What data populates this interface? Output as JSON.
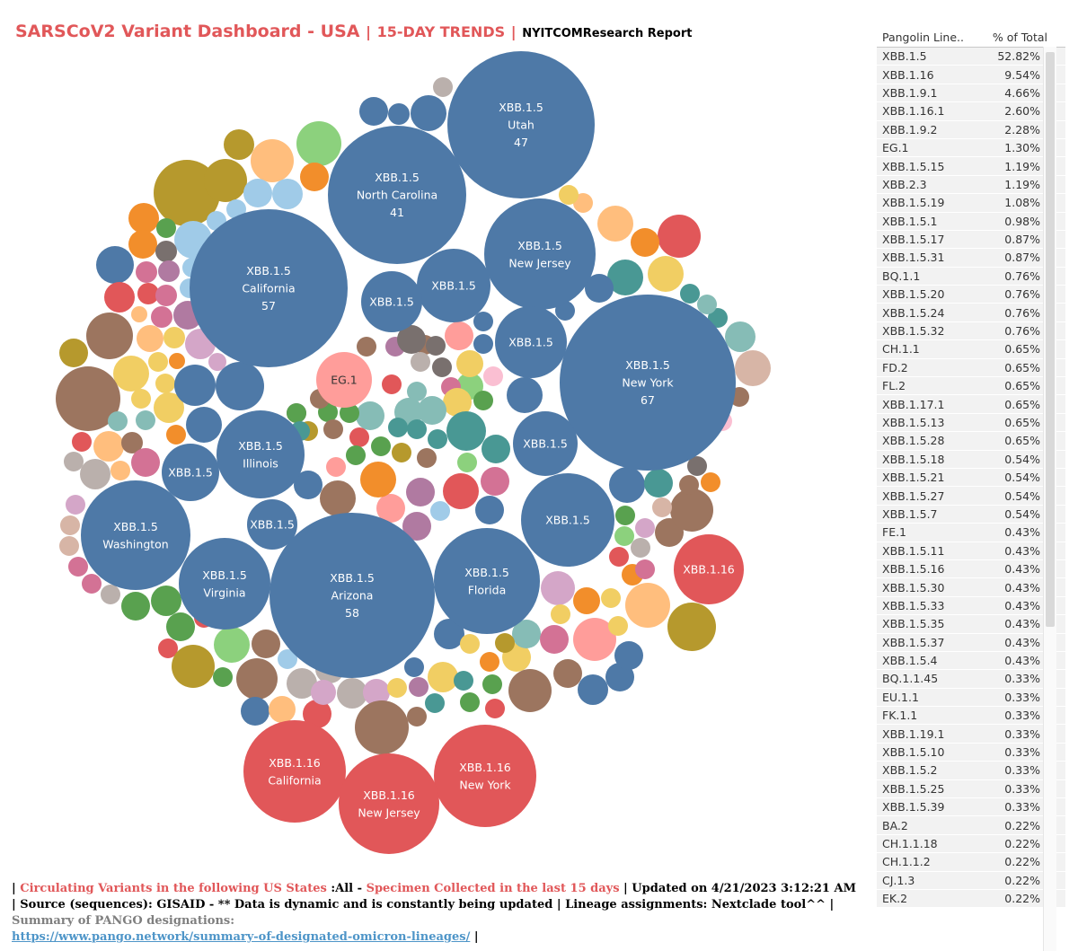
{
  "header": {
    "title": "SARSCoV2 Variant Dashboard - USA",
    "sep": "|",
    "subtitle": "15-DAY TRENDS",
    "report": "NYITCOMResearch Report"
  },
  "colors": {
    "XBB.1.5": "#4e79a7",
    "XBB.1.16": "#e15759",
    "EG.1": "#ff9d9a",
    "other": [
      "#9c755f",
      "#f28e2b",
      "#ffbe7d",
      "#59a14f",
      "#8cd17d",
      "#b6992d",
      "#f1ce63",
      "#499894",
      "#86bcb6",
      "#e15759",
      "#ff9d9a",
      "#d37295",
      "#fabfd2",
      "#b07aa1",
      "#d4a6c8",
      "#bab0ac",
      "#a0cbe8",
      "#79706e",
      "#d7b5a6",
      "#4e79a7"
    ]
  },
  "chart_data": {
    "type": "bubble",
    "title": "SARSCoV2 Variant Dashboard - USA | 15-DAY TRENDS",
    "labeled_bubbles": [
      {
        "lineage": "XBB.1.5",
        "state": "New York",
        "count": 67
      },
      {
        "lineage": "XBB.1.5",
        "state": "Arizona",
        "count": 58
      },
      {
        "lineage": "XBB.1.5",
        "state": "California",
        "count": 57
      },
      {
        "lineage": "XBB.1.5",
        "state": "Utah",
        "count": 47
      },
      {
        "lineage": "XBB.1.5",
        "state": "North Carolina",
        "count": 41
      },
      {
        "lineage": "XBB.1.5",
        "state": "Washington",
        "count": null
      },
      {
        "lineage": "XBB.1.5",
        "state": "New Jersey",
        "count": null
      },
      {
        "lineage": "XBB.1.5",
        "state": "Florida",
        "count": null
      },
      {
        "lineage": "XBB.1.5",
        "state": "Illinois",
        "count": null
      },
      {
        "lineage": "XBB.1.5",
        "state": "Virginia",
        "count": null
      },
      {
        "lineage": "XBB.1.16",
        "state": "California",
        "count": null
      },
      {
        "lineage": "XBB.1.16",
        "state": "New York",
        "count": null
      },
      {
        "lineage": "XBB.1.16",
        "state": "New Jersey",
        "count": null
      },
      {
        "lineage": "XBB.1.5",
        "state": "",
        "count": null
      },
      {
        "lineage": "XBB.1.5",
        "state": "",
        "count": null
      },
      {
        "lineage": "XBB.1.5",
        "state": "",
        "count": null
      },
      {
        "lineage": "XBB.1.5",
        "state": "",
        "count": null
      },
      {
        "lineage": "XBB.1.5",
        "state": "",
        "count": null
      },
      {
        "lineage": "XBB.1.5",
        "state": "",
        "count": null
      },
      {
        "lineage": "XBB.1.5",
        "state": "",
        "count": null
      },
      {
        "lineage": "XBB.1.16",
        "state": "",
        "count": null
      },
      {
        "lineage": "EG.1",
        "state": "",
        "count": null
      }
    ]
  },
  "table": {
    "col1": "Pangolin Line..",
    "col2": "% of Total",
    "rows": [
      [
        "XBB.1.5",
        "52.82%"
      ],
      [
        "XBB.1.16",
        "9.54%"
      ],
      [
        "XBB.1.9.1",
        "4.66%"
      ],
      [
        "XBB.1.16.1",
        "2.60%"
      ],
      [
        "XBB.1.9.2",
        "2.28%"
      ],
      [
        "EG.1",
        "1.30%"
      ],
      [
        "XBB.1.5.15",
        "1.19%"
      ],
      [
        "XBB.2.3",
        "1.19%"
      ],
      [
        "XBB.1.5.19",
        "1.08%"
      ],
      [
        "XBB.1.5.1",
        "0.98%"
      ],
      [
        "XBB.1.5.17",
        "0.87%"
      ],
      [
        "XBB.1.5.31",
        "0.87%"
      ],
      [
        "BQ.1.1",
        "0.76%"
      ],
      [
        "XBB.1.5.20",
        "0.76%"
      ],
      [
        "XBB.1.5.24",
        "0.76%"
      ],
      [
        "XBB.1.5.32",
        "0.76%"
      ],
      [
        "CH.1.1",
        "0.65%"
      ],
      [
        "FD.2",
        "0.65%"
      ],
      [
        "FL.2",
        "0.65%"
      ],
      [
        "XBB.1.17.1",
        "0.65%"
      ],
      [
        "XBB.1.5.13",
        "0.65%"
      ],
      [
        "XBB.1.5.28",
        "0.65%"
      ],
      [
        "XBB.1.5.18",
        "0.54%"
      ],
      [
        "XBB.1.5.21",
        "0.54%"
      ],
      [
        "XBB.1.5.27",
        "0.54%"
      ],
      [
        "XBB.1.5.7",
        "0.54%"
      ],
      [
        "FE.1",
        "0.43%"
      ],
      [
        "XBB.1.5.11",
        "0.43%"
      ],
      [
        "XBB.1.5.16",
        "0.43%"
      ],
      [
        "XBB.1.5.30",
        "0.43%"
      ],
      [
        "XBB.1.5.33",
        "0.43%"
      ],
      [
        "XBB.1.5.35",
        "0.43%"
      ],
      [
        "XBB.1.5.37",
        "0.43%"
      ],
      [
        "XBB.1.5.4",
        "0.43%"
      ],
      [
        "BQ.1.1.45",
        "0.33%"
      ],
      [
        "EU.1.1",
        "0.33%"
      ],
      [
        "FK.1.1",
        "0.33%"
      ],
      [
        "XBB.1.19.1",
        "0.33%"
      ],
      [
        "XBB.1.5.10",
        "0.33%"
      ],
      [
        "XBB.1.5.2",
        "0.33%"
      ],
      [
        "XBB.1.5.25",
        "0.33%"
      ],
      [
        "XBB.1.5.39",
        "0.33%"
      ],
      [
        "BA.2",
        "0.22%"
      ],
      [
        "CH.1.1.18",
        "0.22%"
      ],
      [
        "CH.1.1.2",
        "0.22%"
      ],
      [
        "CJ.1.3",
        "0.22%"
      ],
      [
        "EK.2",
        "0.22%"
      ]
    ]
  },
  "footer": {
    "p1": "| ",
    "p2": "Circulating Variants in the following US States",
    "p3": " :All - ",
    "p4": "Specimen Collected in the last 15 days",
    "p5": " | Updated on 4/21/2023 3:12:21 AM | ",
    "p6": "Source (sequences): GISAID - ** Data is dynamic and is constantly being updated | Lineage assignments: Nextclade tool^^ | ",
    "p7": "Summary of PANGO designations:",
    "link": "https://www.pango.network/summary-of-designated-omicron-lineages/",
    "p8": " |"
  }
}
